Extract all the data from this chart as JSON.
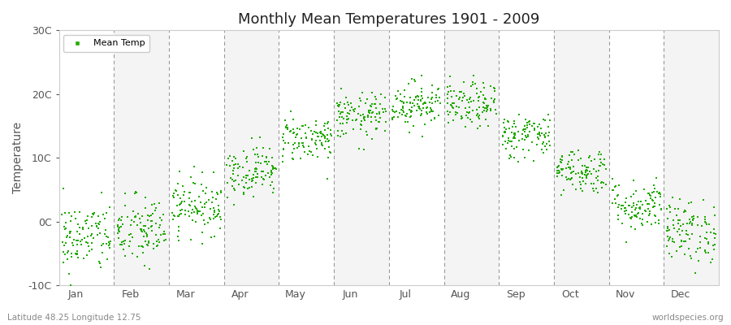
{
  "title": "Monthly Mean Temperatures 1901 - 2009",
  "ylabel": "Temperature",
  "footer_left": "Latitude 48.25 Longitude 12.75",
  "footer_right": "worldspecies.org",
  "legend_label": "Mean Temp",
  "marker_color": "#22aa00",
  "bg_color": "#ffffff",
  "panel_color_odd": "#f4f4f4",
  "panel_color_even": "#ffffff",
  "dash_color": "#999999",
  "ylim": [
    -10,
    30
  ],
  "yticks": [
    -10,
    0,
    10,
    20,
    30
  ],
  "ytick_labels": [
    "-10C",
    "0C",
    "10C",
    "20C",
    "30C"
  ],
  "num_years": 109,
  "monthly_mean_temps": [
    -2.5,
    -1.5,
    2.5,
    8.0,
    13.0,
    16.5,
    18.5,
    18.2,
    13.5,
    8.0,
    2.5,
    -1.5
  ],
  "monthly_std_temps": [
    2.8,
    2.8,
    2.2,
    2.0,
    1.8,
    1.8,
    1.8,
    1.8,
    1.8,
    1.8,
    2.0,
    2.5
  ]
}
